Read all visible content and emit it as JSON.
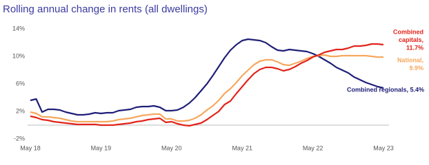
{
  "chart_data": {
    "type": "line",
    "title": "Rolling annual change in rents (all dwellings)",
    "categories": [
      "May 18",
      null,
      null,
      null,
      null,
      null,
      null,
      null,
      null,
      null,
      null,
      null,
      "May 19",
      null,
      null,
      null,
      null,
      null,
      null,
      null,
      null,
      null,
      null,
      null,
      "May 20",
      null,
      null,
      null,
      null,
      null,
      null,
      null,
      null,
      null,
      null,
      null,
      "May 21",
      null,
      null,
      null,
      null,
      null,
      null,
      null,
      null,
      null,
      null,
      null,
      "May 22",
      null,
      null,
      null,
      null,
      null,
      null,
      null,
      null,
      null,
      null,
      null,
      "May 23"
    ],
    "ylim": [
      -2,
      14
    ],
    "yticks": [
      {
        "value": -2,
        "label": "-2%"
      },
      {
        "value": 2,
        "label": "2%"
      },
      {
        "value": 6,
        "label": "6%"
      },
      {
        "value": 10,
        "label": "10%"
      },
      {
        "value": 14,
        "label": "14%"
      }
    ],
    "series": [
      {
        "label_lines": [
          "Combined regionals, 5.4%"
        ],
        "color": "#1e1e78",
        "values": [
          3.6,
          3.8,
          1.9,
          2.3,
          2.3,
          2.2,
          1.9,
          1.7,
          1.5,
          1.5,
          1.6,
          1.8,
          1.7,
          1.8,
          1.8,
          2.1,
          2.2,
          2.3,
          2.6,
          2.7,
          2.7,
          2.8,
          2.6,
          2.1,
          2.1,
          2.2,
          2.6,
          3.2,
          4.0,
          5.0,
          6.0,
          7.2,
          8.5,
          9.8,
          10.9,
          11.7,
          12.3,
          12.5,
          12.4,
          12.3,
          12.0,
          11.4,
          10.9,
          10.8,
          11.0,
          10.9,
          10.8,
          10.7,
          10.4,
          10.0,
          9.5,
          9.0,
          8.4,
          8.0,
          7.6,
          7.0,
          6.6,
          6.2,
          5.9,
          5.6,
          5.4
        ]
      },
      {
        "label_lines": [
          "National,",
          "9.9%"
        ],
        "color": "#f6a85e",
        "values": [
          1.9,
          1.7,
          1.2,
          1.2,
          1.1,
          1.0,
          0.8,
          0.6,
          0.5,
          0.5,
          0.5,
          0.5,
          0.5,
          0.5,
          0.6,
          0.8,
          0.9,
          1.0,
          1.2,
          1.4,
          1.5,
          1.6,
          1.6,
          0.9,
          0.9,
          0.6,
          0.6,
          0.7,
          1.0,
          1.5,
          2.2,
          2.8,
          3.6,
          4.6,
          5.3,
          6.2,
          7.2,
          8.0,
          8.8,
          9.3,
          9.5,
          9.5,
          9.2,
          8.8,
          8.7,
          9.0,
          9.3,
          9.7,
          10.0,
          10.1,
          10.2,
          10.0,
          10.0,
          10.1,
          10.1,
          10.1,
          10.1,
          10.1,
          10.0,
          9.9,
          9.9
        ]
      },
      {
        "label_lines": [
          "Combined",
          "capitals,",
          "11.7%"
        ],
        "color": "#e2231a",
        "values": [
          1.3,
          1.1,
          0.8,
          0.7,
          0.5,
          0.4,
          0.3,
          0.2,
          0.1,
          0.1,
          0.1,
          0.1,
          0.0,
          0.0,
          0.0,
          0.1,
          0.2,
          0.3,
          0.5,
          0.6,
          0.8,
          0.9,
          1.0,
          0.4,
          0.5,
          0.2,
          0.0,
          -0.1,
          0.1,
          0.3,
          0.8,
          1.4,
          2.0,
          3.0,
          3.5,
          4.6,
          5.6,
          6.6,
          7.5,
          8.1,
          8.4,
          8.4,
          8.2,
          7.9,
          8.1,
          8.5,
          9.0,
          9.4,
          9.9,
          10.2,
          10.6,
          10.8,
          11.0,
          11.0,
          11.2,
          11.5,
          11.5,
          11.6,
          11.8,
          11.8,
          11.7
        ]
      }
    ]
  }
}
